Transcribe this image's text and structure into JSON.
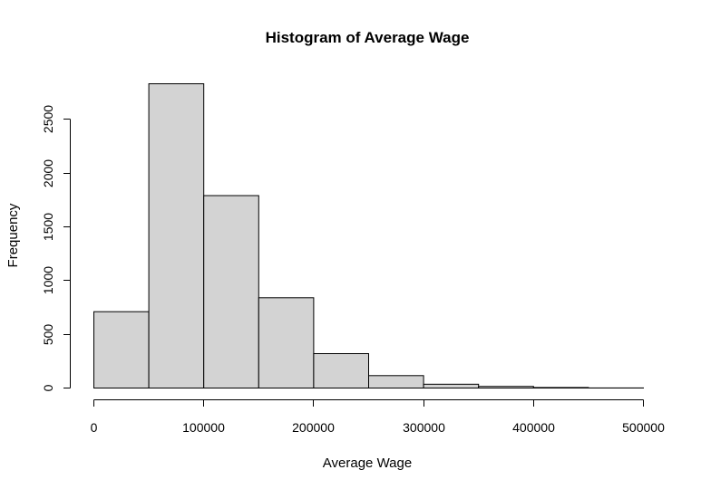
{
  "chart_data": {
    "type": "bar",
    "title": "Histogram of Average Wage",
    "xlabel": "Average Wage",
    "ylabel": "Frequency",
    "bin_edges": [
      0,
      50000,
      100000,
      150000,
      200000,
      250000,
      300000,
      350000,
      400000,
      450000,
      500000
    ],
    "values": [
      710,
      2830,
      1790,
      840,
      320,
      115,
      35,
      15,
      5,
      1
    ],
    "xlim": [
      0,
      500000
    ],
    "ylim": [
      0,
      2830
    ],
    "x_ticks": [
      0,
      100000,
      200000,
      300000,
      400000,
      500000
    ],
    "x_tick_labels": [
      "0",
      "100000",
      "200000",
      "300000",
      "400000",
      "500000"
    ],
    "y_ticks": [
      0,
      500,
      1000,
      1500,
      2000,
      2500
    ],
    "y_tick_labels": [
      "0",
      "500",
      "1000",
      "1500",
      "2000",
      "2500"
    ],
    "grid": false,
    "bar_color": "#d3d3d3",
    "edge_color": "#000000"
  }
}
